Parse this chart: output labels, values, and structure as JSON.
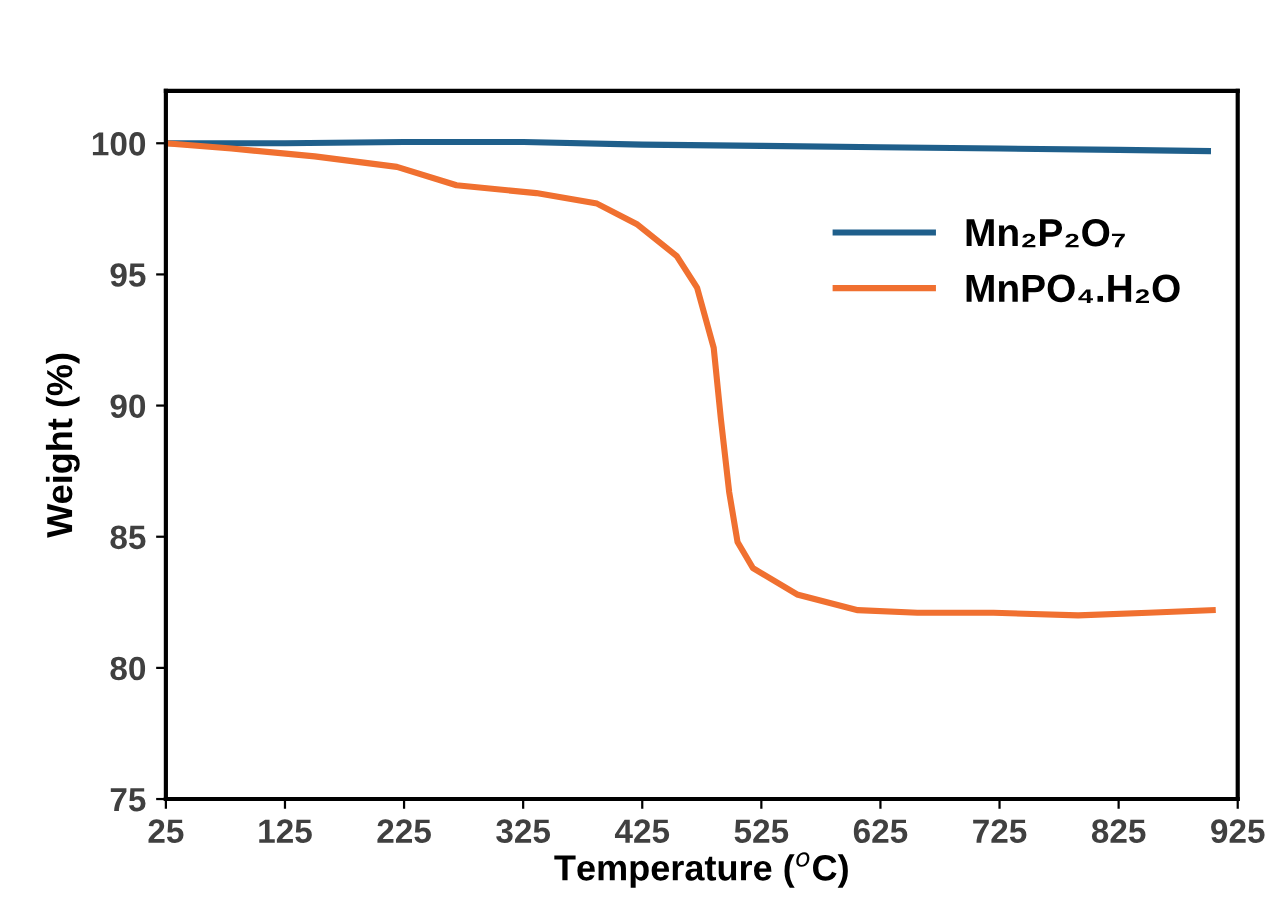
{
  "chart_data": {
    "type": "line",
    "xlabel": "Temperature ($^{o}$C)",
    "ylabel": "Weight (%)",
    "xlim": [
      25,
      925
    ],
    "xticks": [
      25,
      125,
      225,
      325,
      425,
      525,
      625,
      725,
      825,
      925
    ],
    "ylim": [
      75,
      102
    ],
    "yticks": [
      75,
      80,
      85,
      90,
      95,
      100
    ],
    "grid": false,
    "legend": "top right",
    "marker": "none",
    "line_style": "solid",
    "series": [
      {
        "name": "Mn₂P₂O₇",
        "color": "#1f5f8b",
        "x": [
          25,
          125,
          225,
          325,
          425,
          525,
          625,
          725,
          825,
          900
        ],
        "values": [
          100,
          100,
          100.05,
          100.05,
          99.95,
          99.9,
          99.85,
          99.8,
          99.75,
          99.7
        ]
      },
      {
        "name": "MnPO₄.H₂O",
        "color": "#f07030",
        "x": [
          25,
          80,
          150,
          219,
          269,
          336,
          387,
          421,
          454,
          471,
          485,
          491,
          498,
          505,
          518,
          555,
          606,
          656,
          720,
          791,
          850,
          904
        ],
        "values": [
          100,
          99.8,
          99.5,
          99.1,
          98.4,
          98.1,
          97.7,
          96.9,
          95.7,
          94.5,
          92.2,
          89.5,
          86.7,
          84.8,
          83.8,
          82.8,
          82.2,
          82.1,
          82.1,
          82.0,
          82.1,
          82.2
        ]
      }
    ]
  }
}
